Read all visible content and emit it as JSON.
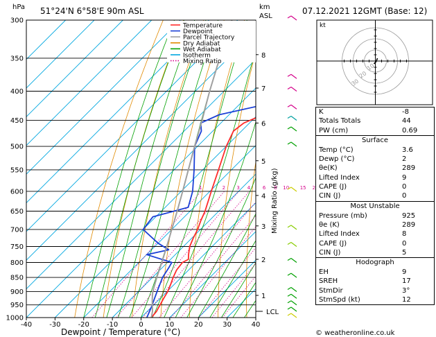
{
  "header": {
    "location": "51°24'N 6°58'E 90m ASL",
    "datetime": "07.12.2021 12GMT (Base: 12)",
    "hpa_label": "hPa",
    "km_label": "km",
    "asl_label": "ASL",
    "mixing_axis_label": "Mixing Ratio (g/kg)",
    "footer": "© weatheronline.co.uk",
    "lcl_label": "LCL"
  },
  "colors": {
    "temperature": "#ff2a2a",
    "dewpoint": "#1a3fd6",
    "parcel": "#a0a0a0",
    "dry_adiabat": "#e08a00",
    "wet_adiabat": "#00a000",
    "isotherm": "#00a7e0",
    "mixing_ratio": "#d4008a"
  },
  "legend": [
    {
      "name": "Temperature",
      "color": "#ff2a2a",
      "style": "solid"
    },
    {
      "name": "Dewpoint",
      "color": "#1a3fd6",
      "style": "solid"
    },
    {
      "name": "Parcel Trajectory",
      "color": "#a0a0a0",
      "style": "solid"
    },
    {
      "name": "Dry Adiabat",
      "color": "#e08a00",
      "style": "solid"
    },
    {
      "name": "Wet Adiabat",
      "color": "#00a000",
      "style": "solid"
    },
    {
      "name": "Isotherm",
      "color": "#00a7e0",
      "style": "solid"
    },
    {
      "name": "Mixing Ratio",
      "color": "#d4008a",
      "style": "dotted"
    }
  ],
  "chart_data": {
    "type": "line",
    "subtype": "skew-T log-P sounding",
    "xlabel": "Dewpoint / Temperature (°C)",
    "ylabel": "hPa",
    "xlim": [
      -40,
      40
    ],
    "ylim": [
      1000,
      300
    ],
    "x_ticks": [
      -40,
      -30,
      -20,
      -10,
      0,
      10,
      20,
      30,
      40
    ],
    "pressure_levels": [
      300,
      350,
      400,
      450,
      500,
      550,
      600,
      650,
      700,
      750,
      800,
      850,
      900,
      950,
      1000
    ],
    "km_ticks": [
      {
        "km": "1",
        "p": 914
      },
      {
        "km": "2",
        "p": 790
      },
      {
        "km": "3",
        "p": 690
      },
      {
        "km": "4",
        "p": 610
      },
      {
        "km": "5",
        "p": 530
      },
      {
        "km": "6",
        "p": 455
      },
      {
        "km": "7",
        "p": 395
      },
      {
        "km": "8",
        "p": 345
      }
    ],
    "lcl_pressure": 975,
    "mixing_ratio_labels": [
      "1",
      "2",
      "3",
      "4",
      "6",
      "8",
      "10",
      "15",
      "20",
      "25"
    ],
    "mixing_ratio_values": [
      1,
      2,
      3,
      4,
      6,
      8,
      10,
      15,
      20,
      25
    ],
    "series": [
      {
        "name": "Temperature",
        "color": "#ff2a2a",
        "points": [
          [
            1000,
            3.6
          ],
          [
            975,
            3.2
          ],
          [
            950,
            2.2
          ],
          [
            925,
            1.2
          ],
          [
            900,
            0.2
          ],
          [
            875,
            -1.2
          ],
          [
            850,
            -2.8
          ],
          [
            825,
            -4.2
          ],
          [
            800,
            -4.8
          ],
          [
            790,
            -3.8
          ],
          [
            775,
            -5.4
          ],
          [
            750,
            -7.8
          ],
          [
            725,
            -9.5
          ],
          [
            700,
            -11.0
          ],
          [
            675,
            -13.0
          ],
          [
            650,
            -14.8
          ],
          [
            600,
            -19.5
          ],
          [
            550,
            -24.5
          ],
          [
            500,
            -30.0
          ],
          [
            470,
            -32.8
          ],
          [
            455,
            -32.0
          ],
          [
            440,
            -28.2
          ],
          [
            420,
            -26.5
          ],
          [
            400,
            -30.0
          ],
          [
            350,
            -39.0
          ],
          [
            300,
            -49.0
          ]
        ]
      },
      {
        "name": "Dewpoint",
        "color": "#1a3fd6",
        "points": [
          [
            1000,
            2.0
          ],
          [
            975,
            0.8
          ],
          [
            950,
            -0.5
          ],
          [
            925,
            -2.0
          ],
          [
            900,
            -3.5
          ],
          [
            850,
            -6.5
          ],
          [
            815,
            -7.8
          ],
          [
            800,
            -8.5
          ],
          [
            775,
            -20.0
          ],
          [
            760,
            -14.0
          ],
          [
            740,
            -20.0
          ],
          [
            700,
            -30.0
          ],
          [
            665,
            -31.0
          ],
          [
            640,
            -22.0
          ],
          [
            600,
            -26.0
          ],
          [
            550,
            -33.0
          ],
          [
            500,
            -41.0
          ],
          [
            470,
            -44.0
          ],
          [
            455,
            -47.0
          ],
          [
            440,
            -43.5
          ],
          [
            425,
            -33.0
          ],
          [
            400,
            -19.0
          ],
          [
            380,
            -25.0
          ],
          [
            350,
            -25.0
          ],
          [
            330,
            -22.0
          ],
          [
            300,
            -28.0
          ]
        ]
      },
      {
        "name": "Parcel Trajectory",
        "color": "#a0a0a0",
        "points": [
          [
            1000,
            3.6
          ],
          [
            975,
            1.8
          ],
          [
            950,
            -0.5
          ],
          [
            925,
            -2.8
          ],
          [
            900,
            -5.0
          ],
          [
            850,
            -8.5
          ],
          [
            800,
            -12.0
          ],
          [
            750,
            -15.8
          ],
          [
            700,
            -20.0
          ],
          [
            650,
            -24.5
          ],
          [
            600,
            -29.5
          ],
          [
            550,
            -35.0
          ],
          [
            500,
            -41.0
          ],
          [
            450,
            -47.5
          ],
          [
            400,
            -55.0
          ],
          [
            350,
            -63.0
          ],
          [
            300,
            -72.0
          ]
        ]
      }
    ]
  },
  "wind_barbs_note": "wind barbs along right edge of skew-T",
  "hodograph": {
    "label": "kt",
    "ring_labels": [
      "10",
      "20",
      "30"
    ]
  },
  "stability": {
    "top": [
      {
        "label": "K",
        "value": "-8"
      },
      {
        "label": "Totals Totals",
        "value": "44"
      },
      {
        "label": "PW (cm)",
        "value": "0.69"
      }
    ],
    "surface_title": "Surface",
    "surface": [
      {
        "label": "Temp (°C)",
        "value": "3.6"
      },
      {
        "label": "Dewp (°C)",
        "value": "2"
      },
      {
        "label": "θe(K)",
        "value": "289"
      },
      {
        "label": "Lifted Index",
        "value": "9"
      },
      {
        "label": "CAPE (J)",
        "value": "0"
      },
      {
        "label": "CIN (J)",
        "value": "0"
      }
    ],
    "unstable_title": "Most Unstable",
    "unstable": [
      {
        "label": "Pressure (mb)",
        "value": "925"
      },
      {
        "label": "θe (K)",
        "value": "289"
      },
      {
        "label": "Lifted Index",
        "value": "8"
      },
      {
        "label": "CAPE (J)",
        "value": "0"
      },
      {
        "label": "CIN (J)",
        "value": "5"
      }
    ],
    "hodograph_title": "Hodograph",
    "hodo": [
      {
        "label": "EH",
        "value": "9"
      },
      {
        "label": "SREH",
        "value": "17"
      },
      {
        "label": "StmDir",
        "value": "3°"
      },
      {
        "label": "StmSpd (kt)",
        "value": "12"
      }
    ]
  }
}
